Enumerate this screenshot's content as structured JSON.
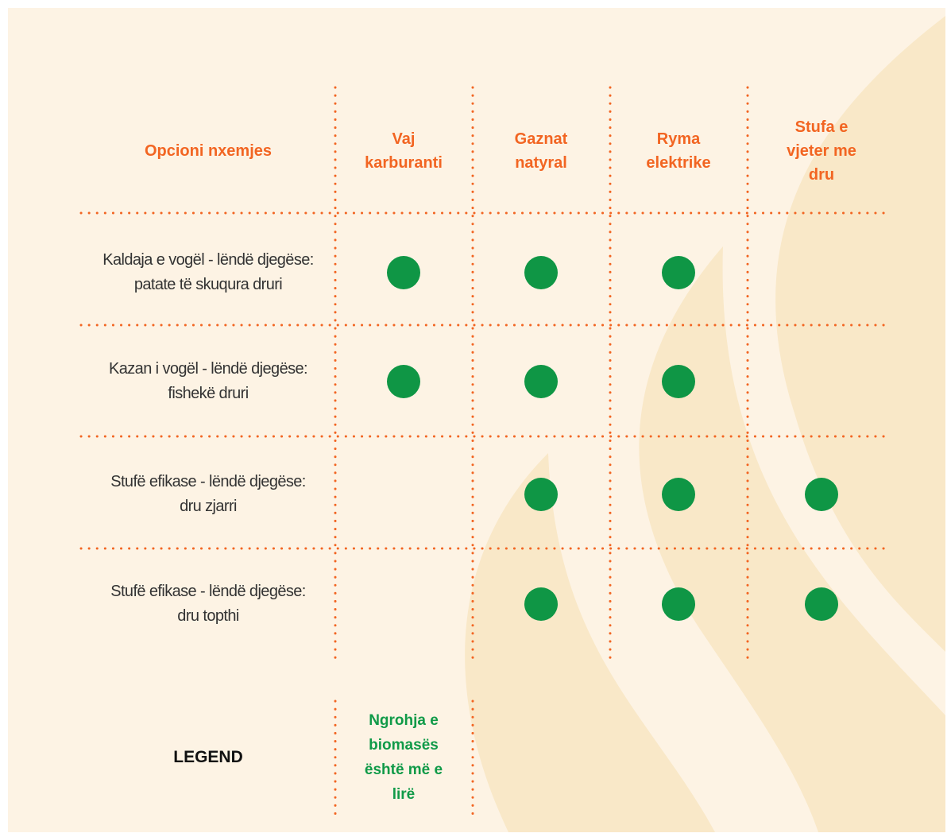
{
  "header": {
    "columns": [
      "Opcioni nxemjes",
      "Vaj karburanti",
      "Gaznat natyral",
      "Ryma elektrike",
      "Stufa e vjeter me dru"
    ]
  },
  "table": {
    "rows": [
      {
        "label": "Kaldaja e vogël - lëndë djegëse: patate të skuqura druri",
        "marks": [
          true,
          true,
          true,
          false
        ]
      },
      {
        "label": "Kazan i vogël - lëndë djegëse: fishekë druri",
        "marks": [
          true,
          true,
          true,
          false
        ]
      },
      {
        "label": "Stufë efikase - lëndë djegëse: dru zjarri",
        "marks": [
          false,
          true,
          true,
          true
        ]
      },
      {
        "label": "Stufë efikase - lëndë djegëse: dru topthi",
        "marks": [
          false,
          true,
          true,
          true
        ]
      }
    ]
  },
  "legend": {
    "title": "LEGEND",
    "text": "Ngrohja e biomasës është më e lirë"
  }
}
